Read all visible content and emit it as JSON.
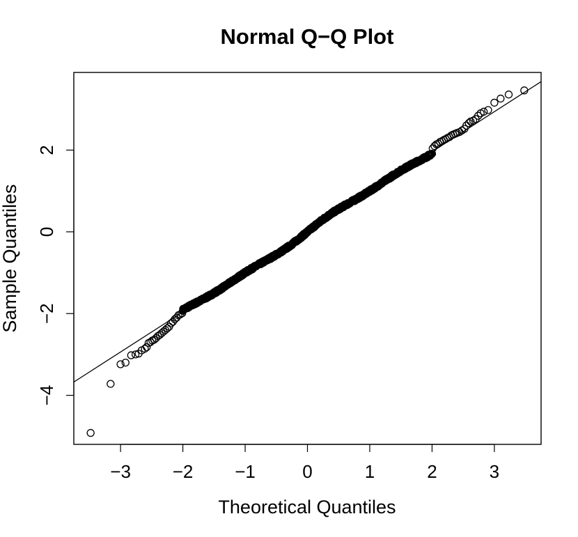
{
  "chart_data": {
    "type": "scatter",
    "title": "Normal Q−Q Plot",
    "xlabel": "Theoretical Quantiles",
    "ylabel": "Sample Quantiles",
    "xlim": [
      -3.75,
      3.75
    ],
    "ylim": [
      -5.2,
      3.9
    ],
    "grid": false,
    "legend": "none",
    "xticks": [
      {
        "value": -3,
        "label": "−3"
      },
      {
        "value": -2,
        "label": "−2"
      },
      {
        "value": -1,
        "label": "−1"
      },
      {
        "value": 0,
        "label": "0"
      },
      {
        "value": 1,
        "label": "1"
      },
      {
        "value": 2,
        "label": "2"
      },
      {
        "value": 3,
        "label": "3"
      }
    ],
    "yticks": [
      {
        "value": -4,
        "label": "−4"
      },
      {
        "value": -2,
        "label": "−2"
      },
      {
        "value": 0,
        "label": "0"
      },
      {
        "value": 2,
        "label": "2"
      }
    ],
    "reference_line": {
      "intercept": 0.0,
      "slope": 0.98
    },
    "series": [
      {
        "marker": "open-circle",
        "color": "#000000",
        "points": [
          [
            -3.48,
            -4.92
          ],
          [
            -3.16,
            -3.72
          ],
          [
            -3.0,
            -3.24
          ],
          [
            -2.92,
            -3.2
          ],
          [
            -2.83,
            -3.02
          ],
          [
            -2.76,
            -3.0
          ],
          [
            -2.71,
            -2.98
          ],
          [
            -2.66,
            -2.9
          ],
          [
            -2.61,
            -2.86
          ],
          [
            -2.58,
            -2.82
          ],
          [
            -2.55,
            -2.72
          ],
          [
            -2.52,
            -2.7
          ],
          [
            -2.49,
            -2.66
          ],
          [
            -2.46,
            -2.64
          ],
          [
            -2.43,
            -2.6
          ],
          [
            -2.4,
            -2.55
          ],
          [
            -2.37,
            -2.52
          ],
          [
            -2.34,
            -2.48
          ],
          [
            -2.31,
            -2.44
          ],
          [
            -2.28,
            -2.4
          ],
          [
            -2.25,
            -2.36
          ],
          [
            -2.22,
            -2.32
          ],
          [
            -2.19,
            -2.24
          ],
          [
            -2.16,
            -2.2
          ],
          [
            -2.13,
            -2.14
          ],
          [
            -2.1,
            -2.1
          ],
          [
            -2.07,
            -2.04
          ],
          [
            -2.04,
            -2.02
          ],
          [
            -2.01,
            -1.99
          ],
          [
            2.01,
            2.04
          ],
          [
            2.04,
            2.1
          ],
          [
            2.07,
            2.14
          ],
          [
            2.1,
            2.16
          ],
          [
            2.13,
            2.2
          ],
          [
            2.16,
            2.22
          ],
          [
            2.19,
            2.25
          ],
          [
            2.22,
            2.27
          ],
          [
            2.25,
            2.3
          ],
          [
            2.28,
            2.32
          ],
          [
            2.31,
            2.36
          ],
          [
            2.34,
            2.38
          ],
          [
            2.37,
            2.4
          ],
          [
            2.4,
            2.42
          ],
          [
            2.44,
            2.44
          ],
          [
            2.48,
            2.48
          ],
          [
            2.52,
            2.52
          ],
          [
            2.55,
            2.6
          ],
          [
            2.59,
            2.66
          ],
          [
            2.62,
            2.7
          ],
          [
            2.66,
            2.72
          ],
          [
            2.7,
            2.76
          ],
          [
            2.74,
            2.84
          ],
          [
            2.78,
            2.9
          ],
          [
            2.83,
            2.94
          ],
          [
            2.9,
            2.98
          ],
          [
            3.0,
            3.16
          ],
          [
            3.1,
            3.26
          ],
          [
            3.23,
            3.36
          ],
          [
            3.48,
            3.46
          ]
        ],
        "dense_band": {
          "x_from": -2.0,
          "x_to": 2.0,
          "count": 900,
          "slope": 0.99,
          "intercept": 0.0
        }
      }
    ]
  }
}
